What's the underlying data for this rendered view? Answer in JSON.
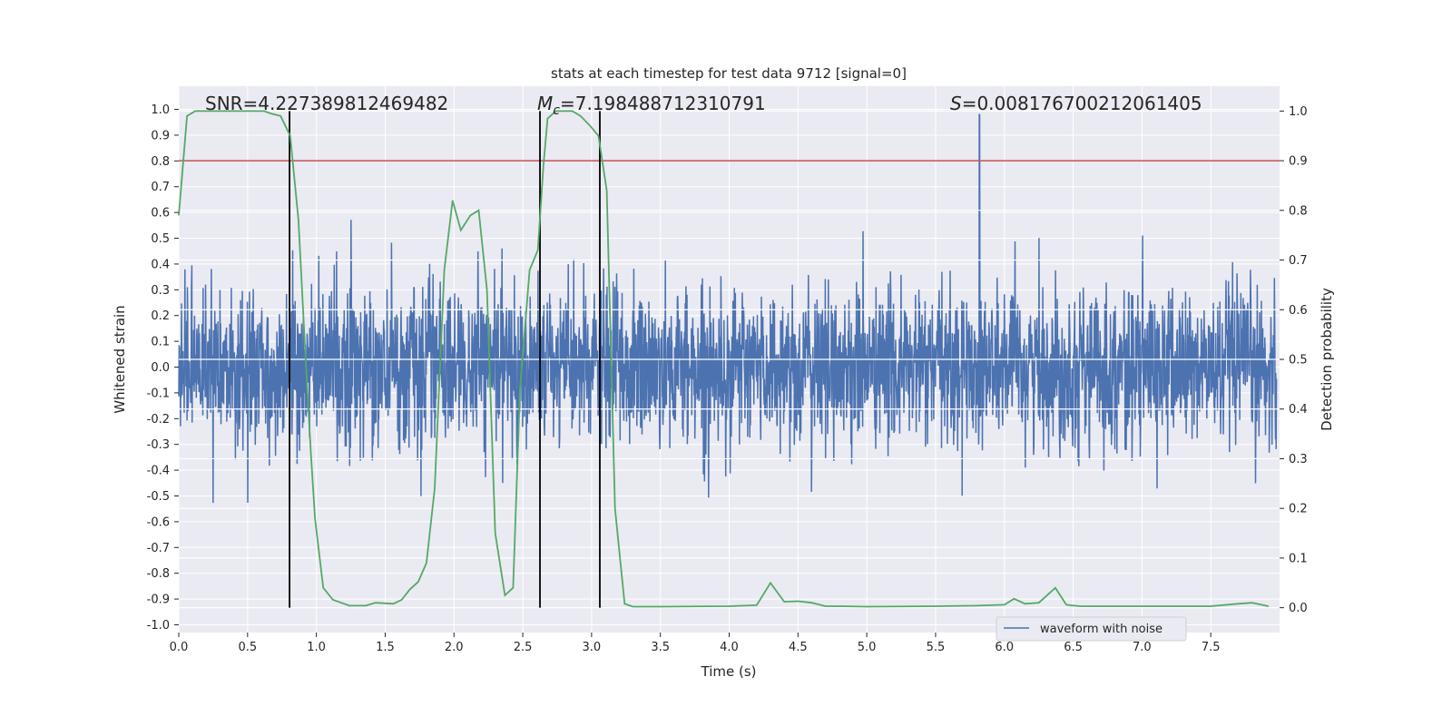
{
  "chart_data": {
    "type": "line",
    "title": "stats at each timestep for test data 9712 [signal=0]",
    "xlabel": "Time (s)",
    "ylabel": "Whitened strain",
    "ylabel_right": "Detection probability",
    "xlim": [
      0,
      8.0
    ],
    "ylim": [
      -1.03,
      1.09
    ],
    "ylim_right": [
      -0.05,
      1.05
    ],
    "grid": true,
    "legend": {
      "placement": "lower-right",
      "entries": [
        "waveform with noise"
      ]
    },
    "x_ticks": [
      "0.0",
      "0.5",
      "1.0",
      "1.5",
      "2.0",
      "2.5",
      "3.0",
      "3.5",
      "4.0",
      "4.5",
      "5.0",
      "5.5",
      "6.0",
      "6.5",
      "7.0",
      "7.5"
    ],
    "y_ticks": [
      "-1.0",
      "-0.9",
      "-0.8",
      "-0.7",
      "-0.6",
      "-0.5",
      "-0.4",
      "-0.3",
      "-0.2",
      "-0.1",
      "0.0",
      "0.1",
      "0.2",
      "0.3",
      "0.4",
      "0.5",
      "0.6",
      "0.7",
      "0.8",
      "0.9",
      "1.0"
    ],
    "y_ticks_right": [
      "0.0",
      "0.1",
      "0.2",
      "0.3",
      "0.4",
      "0.5",
      "0.6",
      "0.7",
      "0.8",
      "0.9",
      "1.0"
    ],
    "annotations": {
      "snr": "SNR=4.227389812469482",
      "mc_symbol": "M",
      "mc_sub": "c",
      "mc_value": "=7.198488712310791",
      "s_symbol": "S",
      "s_value": "=0.008176700212061405"
    },
    "series": [
      {
        "name": "waveform with noise",
        "axis": "left",
        "color": "#4C72B0",
        "noise_std": 0.15,
        "n_samples": 3200,
        "peak": {
          "t": 5.82,
          "value": 1.0
        }
      },
      {
        "name": "detection probability",
        "axis": "right",
        "color": "#55A868",
        "t": [
          0,
          0.06,
          0.12,
          0.62,
          0.67,
          0.74,
          0.81,
          0.87,
          0.92,
          0.96,
          0.99,
          1.05,
          1.12,
          1.24,
          1.36,
          1.43,
          1.56,
          1.62,
          1.68,
          1.74,
          1.8,
          1.86,
          1.93,
          1.99,
          2.05,
          2.12,
          2.18,
          2.24,
          2.3,
          2.37,
          2.43,
          2.48,
          2.55,
          2.61,
          2.65,
          2.68,
          2.74,
          2.86,
          2.92,
          2.99,
          3.05,
          3.11,
          3.17,
          3.24,
          3.3,
          3.5,
          4.0,
          4.2,
          4.3,
          4.4,
          4.5,
          4.6,
          4.7,
          4.8,
          5.0,
          5.5,
          5.8,
          6.0,
          6.07,
          6.15,
          6.25,
          6.37,
          6.45,
          6.55,
          7.0,
          7.5,
          7.7,
          7.8,
          7.92
        ],
        "p": [
          0.79,
          0.99,
          1.0,
          1.0,
          0.995,
          0.99,
          0.95,
          0.78,
          0.51,
          0.31,
          0.18,
          0.04,
          0.016,
          0.004,
          0.004,
          0.01,
          0.008,
          0.016,
          0.037,
          0.052,
          0.09,
          0.24,
          0.68,
          0.82,
          0.76,
          0.79,
          0.8,
          0.64,
          0.15,
          0.025,
          0.04,
          0.44,
          0.68,
          0.72,
          0.89,
          0.985,
          1.0,
          1.0,
          0.99,
          0.97,
          0.95,
          0.84,
          0.2,
          0.008,
          0.002,
          0.002,
          0.003,
          0.005,
          0.05,
          0.012,
          0.013,
          0.01,
          0.003,
          0.003,
          0.002,
          0.003,
          0.004,
          0.006,
          0.018,
          0.008,
          0.01,
          0.04,
          0.006,
          0.003,
          0.003,
          0.003,
          0.008,
          0.01,
          0.003
        ]
      }
    ],
    "threshold": {
      "axis": "right",
      "value": 0.9,
      "color": "#C44E52"
    },
    "markers": {
      "times": [
        0.805,
        2.625,
        3.06
      ],
      "color": "#000000"
    }
  }
}
